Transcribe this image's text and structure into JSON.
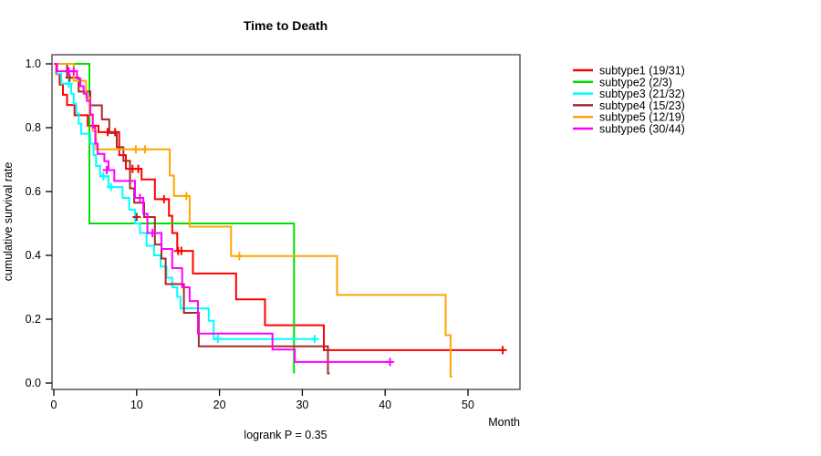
{
  "chart_data": {
    "type": "line",
    "subtype": "kaplan-meier-step-curves",
    "title": "Time to Death",
    "xlabel": "Month",
    "ylabel": "cumulative survival rate",
    "annotation": "logrank P = 0.35",
    "xlim": [
      0,
      56
    ],
    "ylim": [
      0,
      1.0
    ],
    "x_ticks": [
      0,
      10,
      20,
      30,
      40,
      50
    ],
    "y_ticks": [
      0.0,
      0.2,
      0.4,
      0.6,
      0.8,
      1.0
    ],
    "grid": false,
    "legend_position": "right-outside",
    "series": [
      {
        "name": "subtype1 (19/31)",
        "color": "#FF0000",
        "end": 54.2,
        "steps": [
          [
            0,
            1.0
          ],
          [
            0.3,
            0.968
          ],
          [
            0.7,
            0.935
          ],
          [
            1.1,
            0.903
          ],
          [
            1.6,
            0.871
          ],
          [
            2.5,
            0.839
          ],
          [
            4.1,
            0.806
          ],
          [
            5.4,
            0.786
          ],
          [
            7.9,
            0.714
          ],
          [
            8.7,
            0.671
          ],
          [
            10.6,
            0.638
          ],
          [
            12.2,
            0.576
          ],
          [
            13.9,
            0.524
          ],
          [
            14.3,
            0.47
          ],
          [
            14.9,
            0.414
          ],
          [
            16.8,
            0.343
          ],
          [
            22.0,
            0.262
          ],
          [
            25.5,
            0.181
          ],
          [
            32.6,
            0.103
          ]
        ],
        "censors": [
          [
            6.5,
            0.786
          ],
          [
            7.4,
            0.786
          ],
          [
            9.5,
            0.671
          ],
          [
            10.2,
            0.671
          ],
          [
            13.3,
            0.576
          ],
          [
            15.0,
            0.414
          ],
          [
            15.4,
            0.414
          ],
          [
            54.2,
            0.103
          ]
        ]
      },
      {
        "name": "subtype2 (2/3)",
        "color": "#00DF00",
        "end": 29.0,
        "steps": [
          [
            0,
            1.0
          ],
          [
            4.3,
            0.5
          ],
          [
            29.0,
            0.03
          ]
        ],
        "censors": []
      },
      {
        "name": "subtype3 (21/32)",
        "color": "#00FFFF",
        "end": 31.5,
        "steps": [
          [
            0,
            1.0
          ],
          [
            0.4,
            0.969
          ],
          [
            0.9,
            0.938
          ],
          [
            2.1,
            0.906
          ],
          [
            2.4,
            0.875
          ],
          [
            2.7,
            0.844
          ],
          [
            3.0,
            0.813
          ],
          [
            3.3,
            0.781
          ],
          [
            4.4,
            0.75
          ],
          [
            4.8,
            0.714
          ],
          [
            5.1,
            0.68
          ],
          [
            5.6,
            0.648
          ],
          [
            6.6,
            0.614
          ],
          [
            8.3,
            0.58
          ],
          [
            9.1,
            0.543
          ],
          [
            9.8,
            0.5
          ],
          [
            10.4,
            0.47
          ],
          [
            11.2,
            0.43
          ],
          [
            12.1,
            0.4
          ],
          [
            12.9,
            0.365
          ],
          [
            13.6,
            0.33
          ],
          [
            14.3,
            0.3
          ],
          [
            14.9,
            0.27
          ],
          [
            15.3,
            0.234
          ],
          [
            18.7,
            0.195
          ],
          [
            19.3,
            0.138
          ]
        ],
        "censors": [
          [
            1.8,
            0.938
          ],
          [
            6.0,
            0.648
          ],
          [
            6.9,
            0.614
          ],
          [
            19.8,
            0.138
          ],
          [
            31.5,
            0.138
          ]
        ]
      },
      {
        "name": "subtype4 (15/23)",
        "color": "#A52A2A",
        "end": 33.3,
        "steps": [
          [
            0,
            1.0
          ],
          [
            1.6,
            0.957
          ],
          [
            3.0,
            0.913
          ],
          [
            4.4,
            0.87
          ],
          [
            5.8,
            0.826
          ],
          [
            6.7,
            0.783
          ],
          [
            7.6,
            0.739
          ],
          [
            8.4,
            0.696
          ],
          [
            9.2,
            0.61
          ],
          [
            9.7,
            0.565
          ],
          [
            10.9,
            0.52
          ],
          [
            12.2,
            0.434
          ],
          [
            13.0,
            0.39
          ],
          [
            13.5,
            0.31
          ],
          [
            15.7,
            0.22
          ],
          [
            17.5,
            0.115
          ],
          [
            33.1,
            0.03
          ]
        ],
        "censors": [
          [
            1.9,
            0.957
          ],
          [
            10.0,
            0.52
          ]
        ]
      },
      {
        "name": "subtype5 (12/19)",
        "color": "#FFA500",
        "end": 48.1,
        "steps": [
          [
            0,
            1.0
          ],
          [
            2.4,
            0.947
          ],
          [
            3.9,
            0.895
          ],
          [
            4.3,
            0.842
          ],
          [
            4.7,
            0.789
          ],
          [
            5.1,
            0.732
          ],
          [
            14.0,
            0.65
          ],
          [
            14.5,
            0.586
          ],
          [
            16.4,
            0.49
          ],
          [
            21.4,
            0.398
          ],
          [
            34.2,
            0.276
          ],
          [
            47.3,
            0.15
          ],
          [
            47.9,
            0.02
          ]
        ],
        "censors": [
          [
            9.9,
            0.732
          ],
          [
            11.0,
            0.732
          ],
          [
            16.0,
            0.586
          ],
          [
            22.4,
            0.398
          ]
        ]
      },
      {
        "name": "subtype6 (30/44)",
        "color": "#FF00FF",
        "end": 40.6,
        "steps": [
          [
            0,
            1.0
          ],
          [
            0.4,
            0.977
          ],
          [
            2.8,
            0.954
          ],
          [
            3.2,
            0.93
          ],
          [
            3.6,
            0.907
          ],
          [
            4.0,
            0.884
          ],
          [
            4.4,
            0.84
          ],
          [
            4.7,
            0.8
          ],
          [
            5.0,
            0.75
          ],
          [
            5.3,
            0.718
          ],
          [
            6.1,
            0.695
          ],
          [
            6.6,
            0.667
          ],
          [
            7.3,
            0.633
          ],
          [
            9.8,
            0.58
          ],
          [
            10.8,
            0.53
          ],
          [
            11.3,
            0.47
          ],
          [
            13.0,
            0.42
          ],
          [
            14.3,
            0.36
          ],
          [
            15.5,
            0.3
          ],
          [
            16.4,
            0.257
          ],
          [
            17.4,
            0.155
          ],
          [
            26.4,
            0.105
          ],
          [
            29.1,
            0.066
          ]
        ],
        "censors": [
          [
            1.8,
            0.977
          ],
          [
            2.4,
            0.977
          ],
          [
            6.4,
            0.667
          ],
          [
            10.4,
            0.58
          ],
          [
            11.9,
            0.47
          ],
          [
            40.6,
            0.066
          ]
        ]
      }
    ]
  }
}
